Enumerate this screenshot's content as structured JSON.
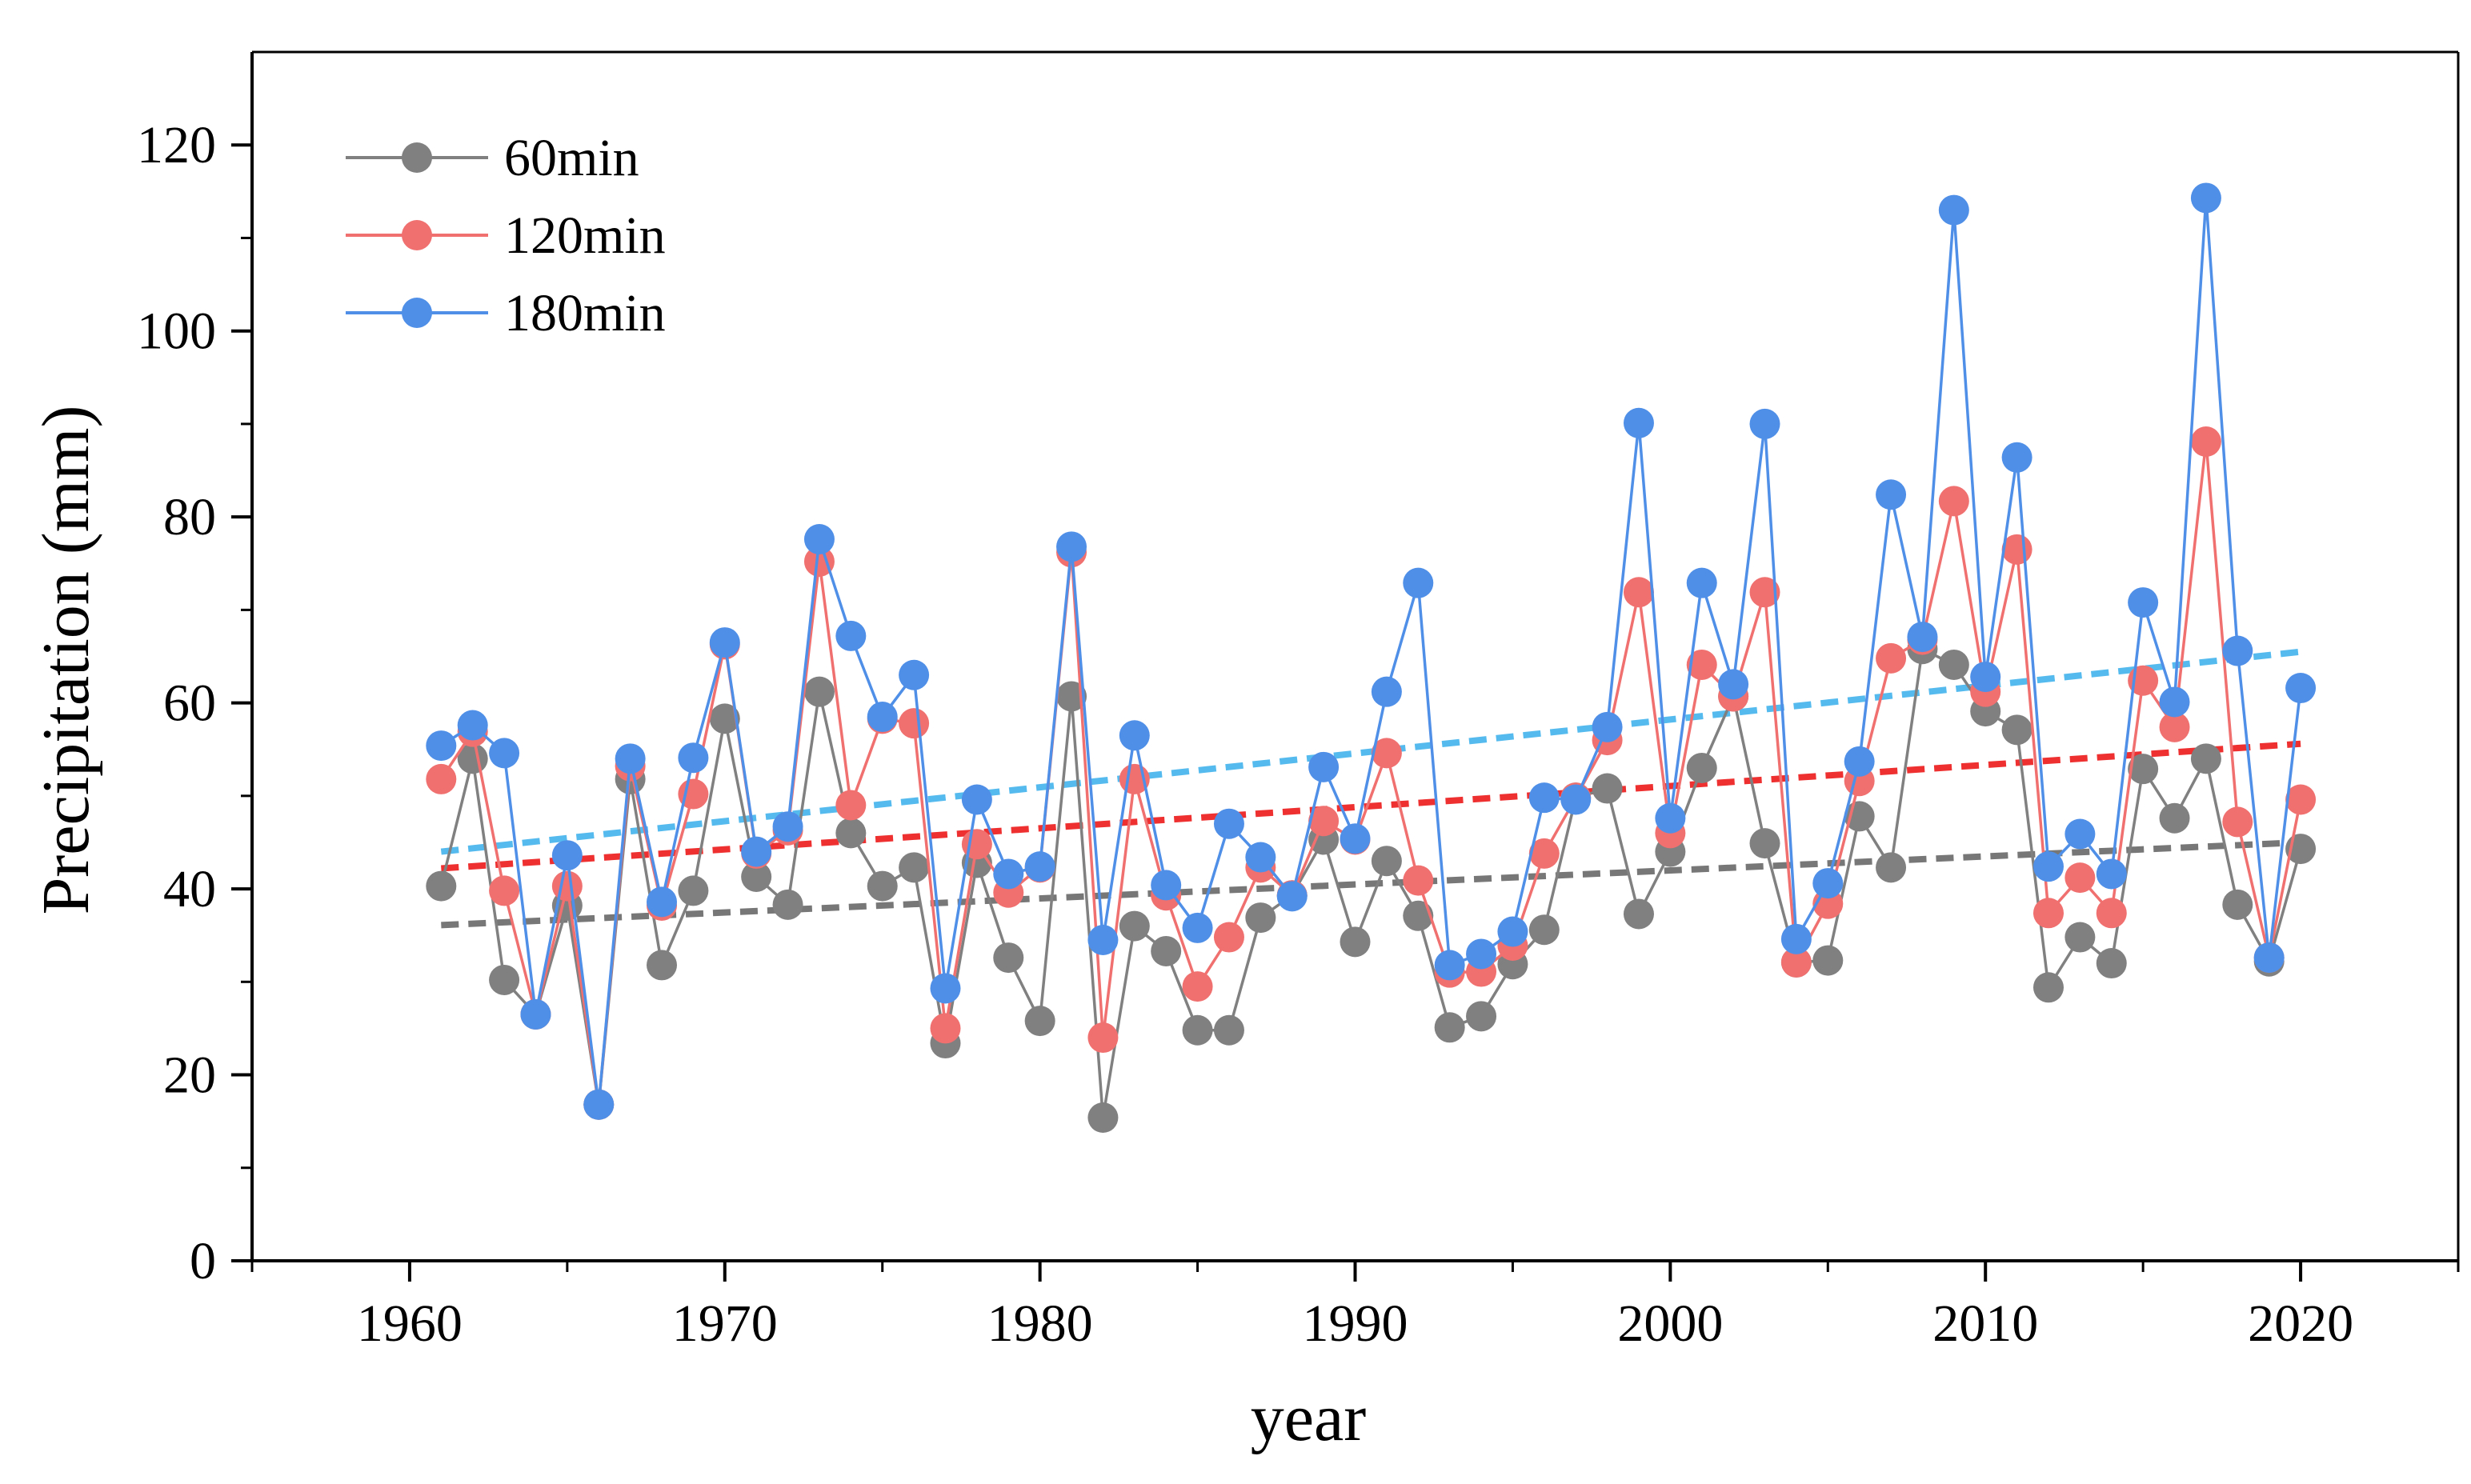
{
  "chart_data": {
    "type": "line",
    "xlabel": "year",
    "ylabel": "Precipitation (mm)",
    "xlim": [
      1955,
      2025
    ],
    "ylim": [
      0,
      130
    ],
    "xticks": [
      1960,
      1970,
      1980,
      1990,
      2000,
      2010,
      2020
    ],
    "yticks": [
      0,
      20,
      40,
      60,
      80,
      100,
      120
    ],
    "legend_position": "top-left",
    "x": [
      1961,
      1962,
      1963,
      1964,
      1965,
      1966,
      1967,
      1968,
      1969,
      1970,
      1971,
      1972,
      1973,
      1974,
      1975,
      1976,
      1977,
      1978,
      1979,
      1980,
      1981,
      1982,
      1983,
      1984,
      1985,
      1986,
      1987,
      1988,
      1989,
      1990,
      1991,
      1992,
      1993,
      1994,
      1995,
      1996,
      1997,
      1998,
      1999,
      2000,
      2001,
      2002,
      2003,
      2004,
      2005,
      2006,
      2007,
      2008,
      2009,
      2010,
      2011,
      2012,
      2013,
      2014,
      2015,
      2016,
      2017,
      2018,
      2019,
      2020
    ],
    "series": [
      {
        "name": "60min",
        "color": "#808080",
        "trend_color": "#777777",
        "values": [
          40.3,
          54.0,
          30.2,
          26.5,
          38.2,
          16.8,
          51.8,
          31.8,
          39.8,
          58.3,
          41.3,
          38.3,
          61.2,
          46.0,
          40.3,
          42.3,
          23.4,
          42.8,
          32.6,
          25.8,
          60.7,
          15.4,
          36.0,
          33.3,
          24.8,
          24.8,
          36.9,
          39.3,
          45.3,
          34.3,
          43.0,
          37.1,
          25.1,
          26.3,
          31.9,
          35.6,
          49.8,
          50.8,
          37.3,
          44.0,
          53.0,
          60.7,
          44.9,
          32.1,
          32.3,
          47.8,
          42.3,
          65.8,
          64.1,
          59.1,
          57.1,
          29.4,
          34.8,
          32.0,
          52.9,
          47.6,
          54.0,
          38.3,
          32.2,
          44.3
        ],
        "trend": [
          36.1,
          45.0
        ]
      },
      {
        "name": "120min",
        "color": "#f07070",
        "trend_color": "#ee3030",
        "values": [
          51.8,
          56.9,
          39.8,
          26.5,
          40.3,
          16.8,
          53.2,
          38.2,
          50.2,
          66.3,
          43.8,
          46.3,
          75.2,
          49.0,
          58.3,
          57.8,
          25.0,
          44.8,
          39.6,
          42.3,
          76.2,
          24.0,
          51.8,
          39.3,
          29.5,
          34.8,
          42.3,
          39.3,
          47.3,
          45.3,
          54.6,
          40.9,
          31.0,
          31.1,
          33.9,
          43.8,
          49.8,
          56.0,
          71.9,
          46.0,
          64.1,
          60.7,
          71.9,
          32.1,
          38.4,
          51.6,
          64.8,
          66.8,
          81.7,
          61.2,
          76.5,
          37.4,
          41.2,
          37.4,
          62.4,
          57.4,
          88.1,
          47.2,
          32.6,
          49.6
        ],
        "trend": [
          42.2,
          55.6
        ]
      },
      {
        "name": "180min",
        "color": "#4f8fe8",
        "trend_color": "#55bbee",
        "values": [
          55.4,
          57.6,
          54.6,
          26.5,
          43.6,
          16.8,
          54.0,
          38.6,
          54.1,
          66.5,
          44.0,
          46.7,
          77.6,
          67.2,
          58.5,
          63.0,
          29.3,
          49.6,
          41.6,
          42.4,
          76.8,
          34.5,
          56.5,
          40.4,
          35.8,
          47.0,
          43.4,
          39.2,
          53.1,
          45.4,
          61.2,
          72.9,
          31.8,
          33.0,
          35.4,
          49.8,
          49.6,
          57.4,
          90.1,
          47.6,
          72.9,
          62.0,
          90.0,
          34.6,
          40.6,
          53.7,
          82.4,
          67.1,
          113.0,
          62.8,
          86.4,
          42.4,
          45.9,
          41.6,
          70.8,
          60.1,
          114.3,
          65.6,
          32.6,
          61.6
        ],
        "trend": [
          44.0,
          65.5
        ]
      }
    ]
  }
}
